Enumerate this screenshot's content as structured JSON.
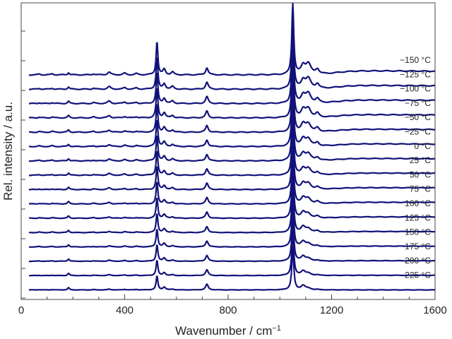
{
  "chart_data": {
    "type": "line",
    "xlabel": "Wavenumber / cm",
    "xlabel_sup": "−1",
    "ylabel": "Rel. intensity / a.u.",
    "xlim": [
      0,
      1600
    ],
    "x_ticks": [
      0,
      400,
      800,
      1200,
      1600
    ],
    "grid": false,
    "line_color": "#10127a",
    "series": [
      {
        "name": "−150 °C",
        "temp_c": -150
      },
      {
        "name": "−125 °C",
        "temp_c": -125
      },
      {
        "name": "−100 °C",
        "temp_c": -100
      },
      {
        "name": "−75 °C",
        "temp_c": -75
      },
      {
        "name": "−50 °C",
        "temp_c": -50
      },
      {
        "name": "−25 °C",
        "temp_c": -25
      },
      {
        "name": "0 °C",
        "temp_c": 0
      },
      {
        "name": "25 °C",
        "temp_c": 25
      },
      {
        "name": "50 °C",
        "temp_c": 50
      },
      {
        "name": "75 °C",
        "temp_c": 75
      },
      {
        "name": "100 °C",
        "temp_c": 100
      },
      {
        "name": "125 °C",
        "temp_c": 125
      },
      {
        "name": "150 °C",
        "temp_c": 150
      },
      {
        "name": "175 °C",
        "temp_c": 175
      },
      {
        "name": "200 °C",
        "temp_c": 200
      },
      {
        "name": "225 °C",
        "temp_c": 225
      }
    ],
    "peaks_cm-1": [
      183,
      525,
      553,
      585,
      718,
      1050,
      1090,
      1110,
      1145
    ]
  }
}
